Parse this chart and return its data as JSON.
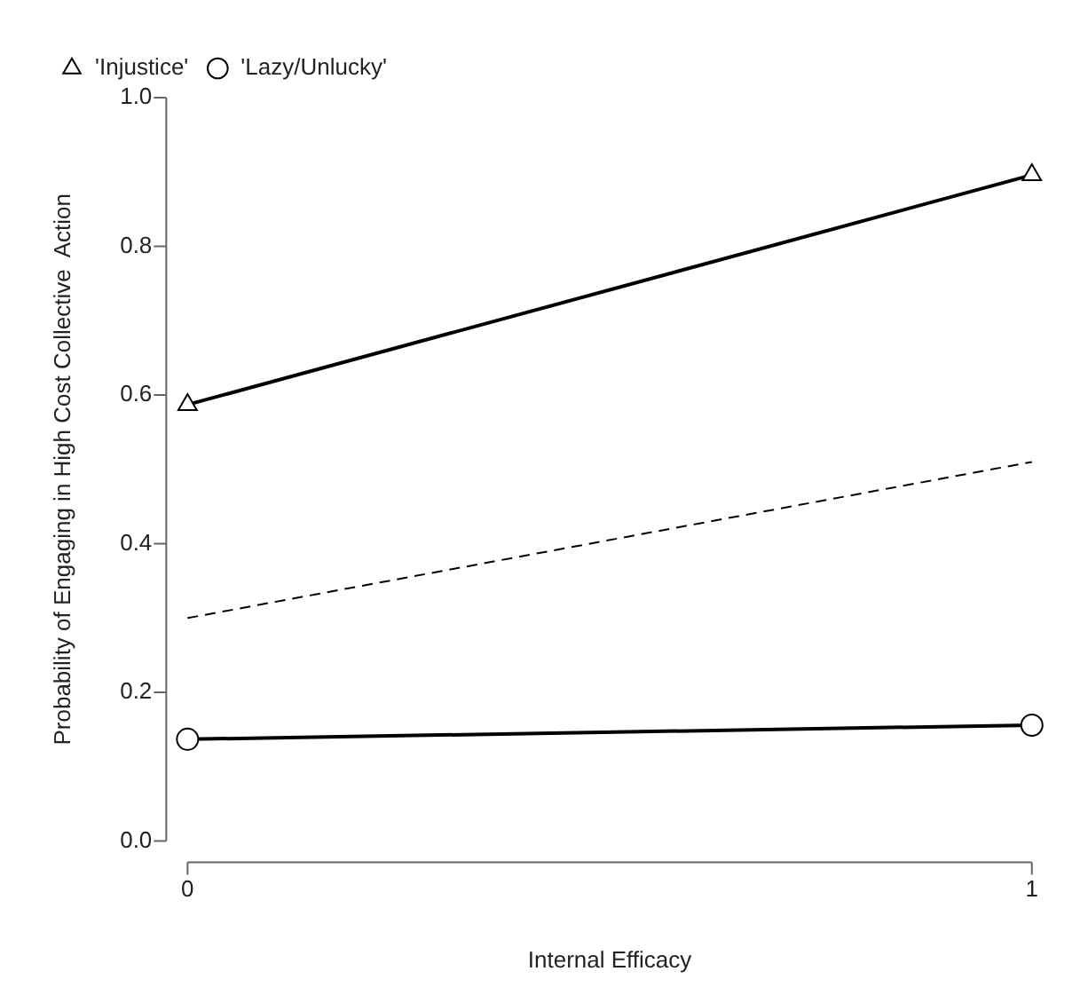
{
  "chart_data": {
    "type": "line",
    "xlabel": "Internal Efficacy",
    "ylabel": "Probability of Engaging in High Cost Collective  Action",
    "x": [
      0,
      1
    ],
    "xlim": [
      0,
      1
    ],
    "xticks": [
      0,
      1
    ],
    "ylim": [
      0,
      1
    ],
    "yticks": [
      {
        "value": 0,
        "label": "0.0"
      },
      0.2,
      0.4,
      0.6,
      0.8,
      {
        "value": 1,
        "label": "1.0"
      }
    ],
    "grid": false,
    "legend": "top left",
    "series": [
      {
        "name": "'Injustice'",
        "color": "#000000",
        "values": [
          0.587,
          0.896
        ],
        "marker": "triangle",
        "line_style": "solid"
      },
      {
        "name": "'Lazy/Unlucky'",
        "color": "#000000",
        "values": [
          0.137,
          0.156
        ],
        "marker": "circle",
        "line_style": "solid"
      },
      {
        "color": "#000000",
        "values": [
          0.3,
          0.51
        ],
        "marker": "none",
        "line_style": "dashed"
      }
    ]
  }
}
